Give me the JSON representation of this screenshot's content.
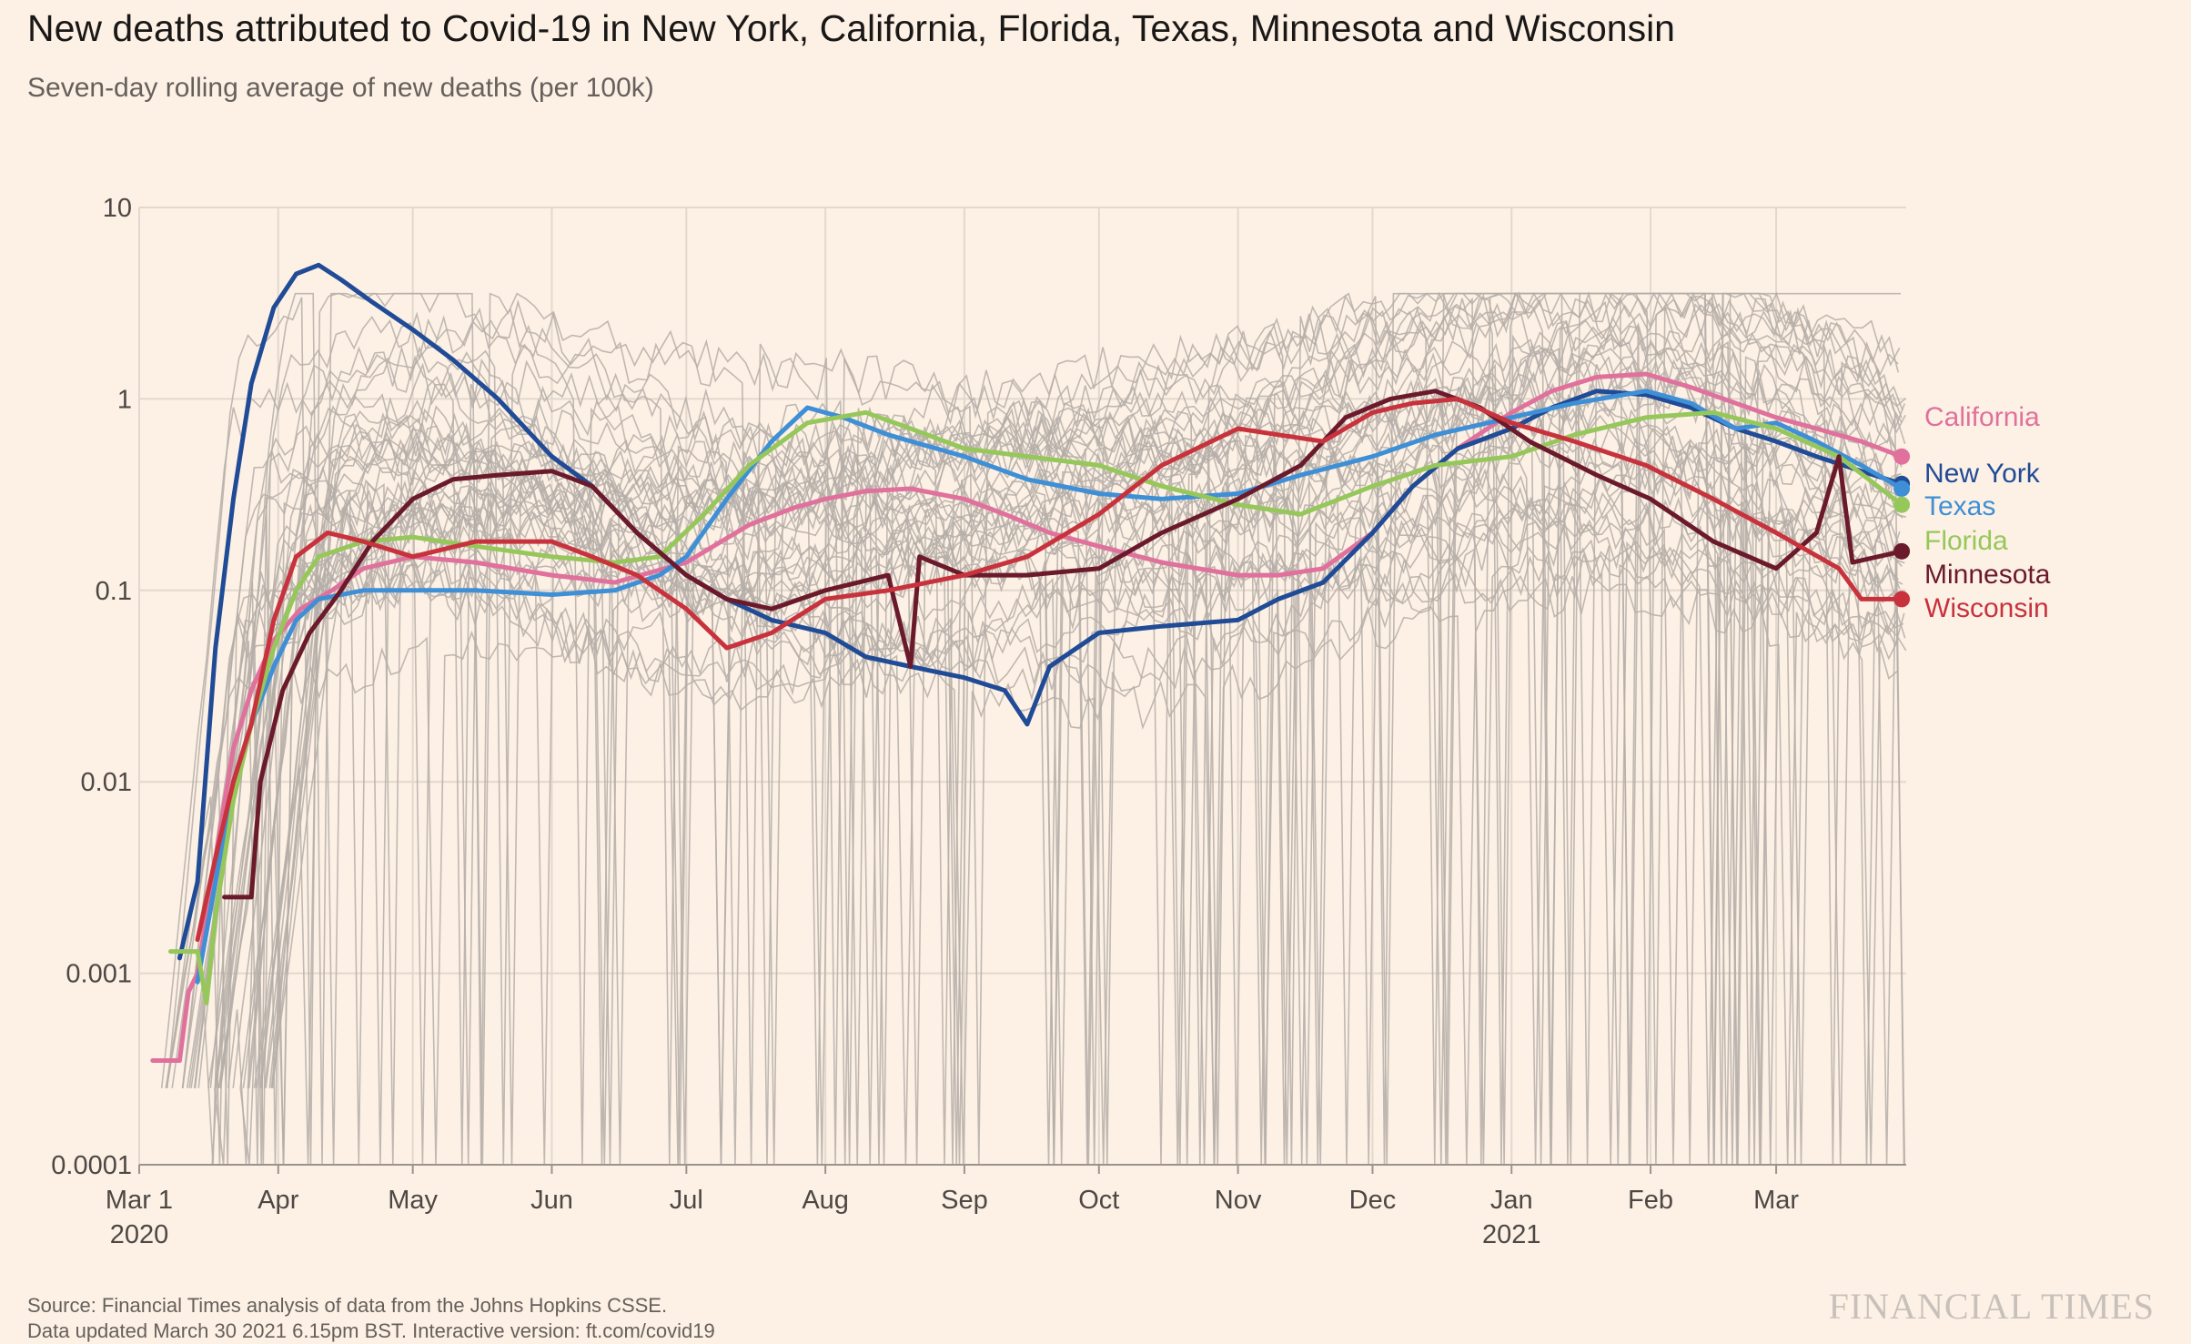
{
  "header": {
    "title": "New deaths attributed to Covid-19 in New York, California, Florida, Texas, Minnesota and Wisconsin",
    "subtitle": "Seven-day rolling average of new deaths (per 100k)"
  },
  "footer": {
    "source_line_1": "Source: Financial Times analysis of data from the Johns Hopkins CSSE.",
    "source_line_2": "Data updated March 30 2021 6.15pm BST. Interactive version: ft.com/covid19",
    "brand": "FINANCIAL TIMES"
  },
  "chart_data": {
    "type": "line",
    "title": "New deaths attributed to Covid-19 in New York, California, Florida, Texas, Minnesota and Wisconsin",
    "subtitle": "Seven-day rolling average of new deaths (per 100k)",
    "xlabel": "",
    "ylabel": "",
    "y_scale": "log",
    "ylim": [
      0.0001,
      10
    ],
    "xlim": [
      "2020-03-01",
      "2021-03-30"
    ],
    "y_ticks": [
      {
        "value": 10,
        "label": "10"
      },
      {
        "value": 1,
        "label": "1"
      },
      {
        "value": 0.1,
        "label": "0.1"
      },
      {
        "value": 0.01,
        "label": "0.01"
      },
      {
        "value": 0.001,
        "label": "0.001"
      },
      {
        "value": 0.0001,
        "label": "0.0001"
      }
    ],
    "x_ticks": [
      {
        "date": "2020-03-01",
        "label": "Mar 1",
        "sublabel": "2020"
      },
      {
        "date": "2020-04-01",
        "label": "Apr",
        "sublabel": ""
      },
      {
        "date": "2020-05-01",
        "label": "May",
        "sublabel": ""
      },
      {
        "date": "2020-06-01",
        "label": "Jun",
        "sublabel": ""
      },
      {
        "date": "2020-07-01",
        "label": "Jul",
        "sublabel": ""
      },
      {
        "date": "2020-08-01",
        "label": "Aug",
        "sublabel": ""
      },
      {
        "date": "2020-09-01",
        "label": "Sep",
        "sublabel": ""
      },
      {
        "date": "2020-10-01",
        "label": "Oct",
        "sublabel": ""
      },
      {
        "date": "2020-11-01",
        "label": "Nov",
        "sublabel": ""
      },
      {
        "date": "2020-12-01",
        "label": "Dec",
        "sublabel": ""
      },
      {
        "date": "2021-01-01",
        "label": "Jan",
        "sublabel": "2021"
      },
      {
        "date": "2021-02-01",
        "label": "Feb",
        "sublabel": ""
      },
      {
        "date": "2021-03-01",
        "label": "Mar",
        "sublabel": ""
      }
    ],
    "grid": true,
    "legend": "direct labels at right end of lines",
    "background_series_color": "#b5aea8",
    "background_series_description_count": 44,
    "series": [
      {
        "name": "California",
        "color": "#e0719c",
        "points": [
          [
            "2020-03-04",
            0.00035
          ],
          [
            "2020-03-10",
            0.00035
          ],
          [
            "2020-03-12",
            0.0008
          ],
          [
            "2020-03-14",
            0.001
          ],
          [
            "2020-03-18",
            0.004
          ],
          [
            "2020-03-22",
            0.015
          ],
          [
            "2020-03-26",
            0.03
          ],
          [
            "2020-03-31",
            0.055
          ],
          [
            "2020-04-06",
            0.08
          ],
          [
            "2020-04-13",
            0.1
          ],
          [
            "2020-04-20",
            0.13
          ],
          [
            "2020-05-01",
            0.15
          ],
          [
            "2020-05-15",
            0.14
          ],
          [
            "2020-06-01",
            0.12
          ],
          [
            "2020-06-15",
            0.11
          ],
          [
            "2020-07-01",
            0.14
          ],
          [
            "2020-07-15",
            0.22
          ],
          [
            "2020-07-25",
            0.27
          ],
          [
            "2020-08-01",
            0.3
          ],
          [
            "2020-08-10",
            0.33
          ],
          [
            "2020-08-20",
            0.34
          ],
          [
            "2020-09-01",
            0.3
          ],
          [
            "2020-09-10",
            0.25
          ],
          [
            "2020-09-20",
            0.2
          ],
          [
            "2020-10-01",
            0.17
          ],
          [
            "2020-10-15",
            0.14
          ],
          [
            "2020-11-01",
            0.12
          ],
          [
            "2020-11-10",
            0.12
          ],
          [
            "2020-11-20",
            0.13
          ],
          [
            "2020-12-01",
            0.2
          ],
          [
            "2020-12-10",
            0.35
          ],
          [
            "2020-12-20",
            0.55
          ],
          [
            "2021-01-01",
            0.85
          ],
          [
            "2021-01-10",
            1.1
          ],
          [
            "2021-01-20",
            1.3
          ],
          [
            "2021-01-31",
            1.35
          ],
          [
            "2021-02-10",
            1.15
          ],
          [
            "2021-02-20",
            0.95
          ],
          [
            "2021-03-01",
            0.8
          ],
          [
            "2021-03-10",
            0.7
          ],
          [
            "2021-03-20",
            0.6
          ],
          [
            "2021-03-29",
            0.5
          ]
        ]
      },
      {
        "name": "New York",
        "color": "#204b96",
        "points": [
          [
            "2020-03-10",
            0.0012
          ],
          [
            "2020-03-14",
            0.003
          ],
          [
            "2020-03-18",
            0.05
          ],
          [
            "2020-03-22",
            0.3
          ],
          [
            "2020-03-26",
            1.2
          ],
          [
            "2020-03-31",
            3
          ],
          [
            "2020-04-05",
            4.5
          ],
          [
            "2020-04-10",
            5
          ],
          [
            "2020-04-15",
            4.2
          ],
          [
            "2020-04-22",
            3.2
          ],
          [
            "2020-05-01",
            2.3
          ],
          [
            "2020-05-10",
            1.6
          ],
          [
            "2020-05-20",
            1
          ],
          [
            "2020-06-01",
            0.5
          ],
          [
            "2020-06-10",
            0.35
          ],
          [
            "2020-06-20",
            0.2
          ],
          [
            "2020-07-01",
            0.12
          ],
          [
            "2020-07-10",
            0.09
          ],
          [
            "2020-07-20",
            0.07
          ],
          [
            "2020-08-01",
            0.06
          ],
          [
            "2020-08-10",
            0.045
          ],
          [
            "2020-08-20",
            0.04
          ],
          [
            "2020-09-01",
            0.035
          ],
          [
            "2020-09-10",
            0.03
          ],
          [
            "2020-09-15",
            0.02
          ],
          [
            "2020-09-20",
            0.04
          ],
          [
            "2020-10-01",
            0.06
          ],
          [
            "2020-10-15",
            0.065
          ],
          [
            "2020-11-01",
            0.07
          ],
          [
            "2020-11-10",
            0.09
          ],
          [
            "2020-11-20",
            0.11
          ],
          [
            "2020-12-01",
            0.2
          ],
          [
            "2020-12-10",
            0.35
          ],
          [
            "2020-12-20",
            0.55
          ],
          [
            "2021-01-01",
            0.7
          ],
          [
            "2021-01-10",
            0.9
          ],
          [
            "2021-01-20",
            1.1
          ],
          [
            "2021-01-31",
            1.05
          ],
          [
            "2021-02-10",
            0.9
          ],
          [
            "2021-02-20",
            0.7
          ],
          [
            "2021-03-01",
            0.6
          ],
          [
            "2021-03-10",
            0.5
          ],
          [
            "2021-03-20",
            0.42
          ],
          [
            "2021-03-29",
            0.36
          ]
        ]
      },
      {
        "name": "Texas",
        "color": "#3e8fd6",
        "points": [
          [
            "2020-03-14",
            0.0009
          ],
          [
            "2020-03-18",
            0.003
          ],
          [
            "2020-03-22",
            0.01
          ],
          [
            "2020-03-26",
            0.02
          ],
          [
            "2020-03-31",
            0.04
          ],
          [
            "2020-04-05",
            0.07
          ],
          [
            "2020-04-10",
            0.09
          ],
          [
            "2020-04-20",
            0.1
          ],
          [
            "2020-05-01",
            0.1
          ],
          [
            "2020-05-15",
            0.1
          ],
          [
            "2020-06-01",
            0.095
          ],
          [
            "2020-06-15",
            0.1
          ],
          [
            "2020-06-25",
            0.12
          ],
          [
            "2020-07-01",
            0.15
          ],
          [
            "2020-07-10",
            0.3
          ],
          [
            "2020-07-20",
            0.6
          ],
          [
            "2020-07-28",
            0.9
          ],
          [
            "2020-08-05",
            0.8
          ],
          [
            "2020-08-15",
            0.65
          ],
          [
            "2020-09-01",
            0.5
          ],
          [
            "2020-09-15",
            0.38
          ],
          [
            "2020-10-01",
            0.32
          ],
          [
            "2020-10-15",
            0.3
          ],
          [
            "2020-11-01",
            0.32
          ],
          [
            "2020-11-15",
            0.4
          ],
          [
            "2020-12-01",
            0.5
          ],
          [
            "2020-12-15",
            0.65
          ],
          [
            "2021-01-01",
            0.8
          ],
          [
            "2021-01-15",
            0.95
          ],
          [
            "2021-01-31",
            1.1
          ],
          [
            "2021-02-10",
            0.95
          ],
          [
            "2021-02-20",
            0.7
          ],
          [
            "2021-03-01",
            0.75
          ],
          [
            "2021-03-10",
            0.6
          ],
          [
            "2021-03-20",
            0.45
          ],
          [
            "2021-03-29",
            0.34
          ]
        ]
      },
      {
        "name": "Florida",
        "color": "#96c75a",
        "points": [
          [
            "2020-03-08",
            0.0013
          ],
          [
            "2020-03-14",
            0.0013
          ],
          [
            "2020-03-16",
            0.0007
          ],
          [
            "2020-03-18",
            0.002
          ],
          [
            "2020-03-22",
            0.008
          ],
          [
            "2020-03-26",
            0.02
          ],
          [
            "2020-03-31",
            0.05
          ],
          [
            "2020-04-05",
            0.1
          ],
          [
            "2020-04-10",
            0.15
          ],
          [
            "2020-04-20",
            0.18
          ],
          [
            "2020-05-01",
            0.19
          ],
          [
            "2020-05-15",
            0.17
          ],
          [
            "2020-06-01",
            0.15
          ],
          [
            "2020-06-15",
            0.14
          ],
          [
            "2020-06-25",
            0.15
          ],
          [
            "2020-07-05",
            0.25
          ],
          [
            "2020-07-15",
            0.45
          ],
          [
            "2020-07-28",
            0.75
          ],
          [
            "2020-08-10",
            0.85
          ],
          [
            "2020-08-20",
            0.7
          ],
          [
            "2020-09-01",
            0.55
          ],
          [
            "2020-09-15",
            0.5
          ],
          [
            "2020-10-01",
            0.45
          ],
          [
            "2020-10-15",
            0.35
          ],
          [
            "2020-11-01",
            0.28
          ],
          [
            "2020-11-15",
            0.25
          ],
          [
            "2020-12-01",
            0.35
          ],
          [
            "2020-12-15",
            0.45
          ],
          [
            "2021-01-01",
            0.5
          ],
          [
            "2021-01-15",
            0.65
          ],
          [
            "2021-01-31",
            0.8
          ],
          [
            "2021-02-15",
            0.85
          ],
          [
            "2021-03-01",
            0.7
          ],
          [
            "2021-03-15",
            0.5
          ],
          [
            "2021-03-29",
            0.28
          ]
        ]
      },
      {
        "name": "Minnesota",
        "color": "#6b1a2c",
        "points": [
          [
            "2020-03-20",
            0.0025
          ],
          [
            "2020-03-26",
            0.0025
          ],
          [
            "2020-03-28",
            0.01
          ],
          [
            "2020-04-02",
            0.03
          ],
          [
            "2020-04-08",
            0.06
          ],
          [
            "2020-04-15",
            0.1
          ],
          [
            "2020-04-22",
            0.18
          ],
          [
            "2020-05-01",
            0.3
          ],
          [
            "2020-05-10",
            0.38
          ],
          [
            "2020-05-20",
            0.4
          ],
          [
            "2020-06-01",
            0.42
          ],
          [
            "2020-06-10",
            0.35
          ],
          [
            "2020-06-20",
            0.2
          ],
          [
            "2020-07-01",
            0.12
          ],
          [
            "2020-07-10",
            0.09
          ],
          [
            "2020-07-20",
            0.08
          ],
          [
            "2020-08-01",
            0.1
          ],
          [
            "2020-08-15",
            0.12
          ],
          [
            "2020-08-20",
            0.04
          ],
          [
            "2020-08-22",
            0.15
          ],
          [
            "2020-09-01",
            0.12
          ],
          [
            "2020-09-15",
            0.12
          ],
          [
            "2020-10-01",
            0.13
          ],
          [
            "2020-10-15",
            0.2
          ],
          [
            "2020-11-01",
            0.3
          ],
          [
            "2020-11-15",
            0.45
          ],
          [
            "2020-11-25",
            0.8
          ],
          [
            "2020-12-05",
            1
          ],
          [
            "2020-12-15",
            1.1
          ],
          [
            "2020-12-25",
            0.9
          ],
          [
            "2021-01-05",
            0.6
          ],
          [
            "2021-01-20",
            0.4
          ],
          [
            "2021-02-01",
            0.3
          ],
          [
            "2021-02-15",
            0.18
          ],
          [
            "2021-03-01",
            0.13
          ],
          [
            "2021-03-10",
            0.2
          ],
          [
            "2021-03-15",
            0.5
          ],
          [
            "2021-03-18",
            0.14
          ],
          [
            "2021-03-29",
            0.16
          ]
        ]
      },
      {
        "name": "Wisconsin",
        "color": "#c8323d",
        "points": [
          [
            "2020-03-14",
            0.0015
          ],
          [
            "2020-03-18",
            0.004
          ],
          [
            "2020-03-22",
            0.01
          ],
          [
            "2020-03-26",
            0.02
          ],
          [
            "2020-03-31",
            0.07
          ],
          [
            "2020-04-05",
            0.15
          ],
          [
            "2020-04-12",
            0.2
          ],
          [
            "2020-04-20",
            0.18
          ],
          [
            "2020-05-01",
            0.15
          ],
          [
            "2020-05-15",
            0.18
          ],
          [
            "2020-06-01",
            0.18
          ],
          [
            "2020-06-10",
            0.15
          ],
          [
            "2020-06-20",
            0.12
          ],
          [
            "2020-07-01",
            0.08
          ],
          [
            "2020-07-10",
            0.05
          ],
          [
            "2020-07-20",
            0.06
          ],
          [
            "2020-08-01",
            0.09
          ],
          [
            "2020-08-15",
            0.1
          ],
          [
            "2020-09-01",
            0.12
          ],
          [
            "2020-09-15",
            0.15
          ],
          [
            "2020-10-01",
            0.25
          ],
          [
            "2020-10-15",
            0.45
          ],
          [
            "2020-11-01",
            0.7
          ],
          [
            "2020-11-10",
            0.65
          ],
          [
            "2020-11-20",
            0.6
          ],
          [
            "2020-12-01",
            0.85
          ],
          [
            "2020-12-10",
            0.95
          ],
          [
            "2020-12-20",
            1
          ],
          [
            "2021-01-01",
            0.75
          ],
          [
            "2021-01-15",
            0.6
          ],
          [
            "2021-01-31",
            0.45
          ],
          [
            "2021-02-15",
            0.3
          ],
          [
            "2021-03-01",
            0.2
          ],
          [
            "2021-03-15",
            0.13
          ],
          [
            "2021-03-20",
            0.09
          ],
          [
            "2021-03-29",
            0.09
          ]
        ]
      }
    ],
    "end_labels": [
      {
        "name": "California",
        "value": 0.5
      },
      {
        "name": "New York",
        "value": 0.36
      },
      {
        "name": "Texas",
        "value": 0.34
      },
      {
        "name": "Florida",
        "value": 0.28
      },
      {
        "name": "Minnesota",
        "value": 0.16
      },
      {
        "name": "Wisconsin",
        "value": 0.09
      }
    ]
  }
}
